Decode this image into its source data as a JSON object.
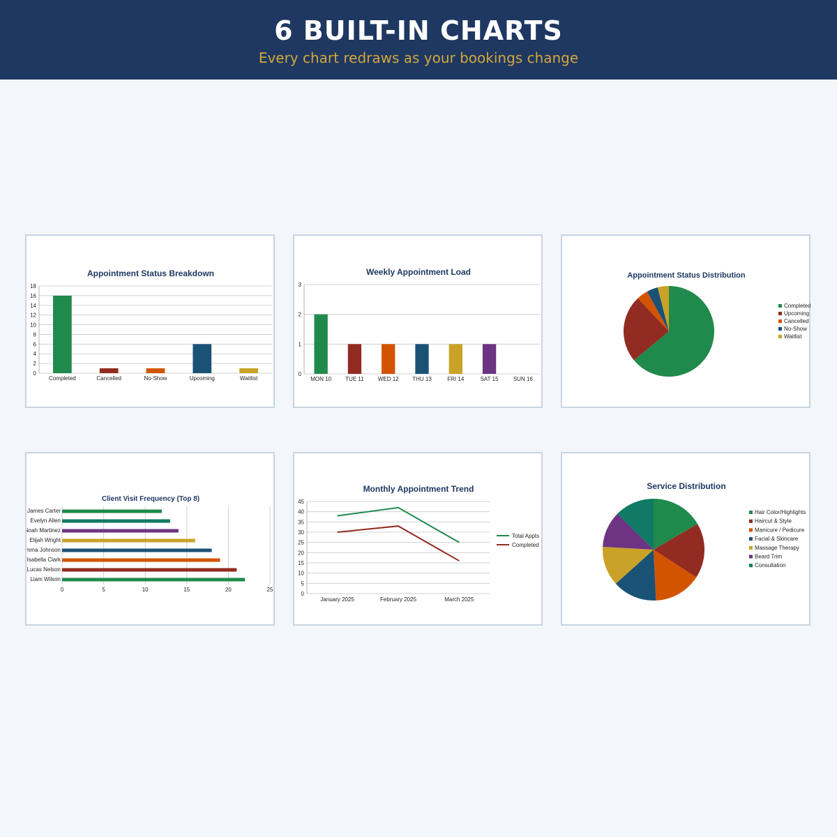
{
  "header": {
    "title": "6 BUILT-IN CHARTS",
    "subtitle": "Every chart redraws as your bookings change"
  },
  "chart_data": [
    {
      "id": "status-breakdown",
      "type": "bar",
      "title": "Appointment Status Breakdown",
      "categories": [
        "Completed",
        "Cancelled",
        "No-Show",
        "Upcoming",
        "Waitlist"
      ],
      "values": [
        16,
        1,
        1,
        6,
        1
      ],
      "colors": [
        "#1f8a4c",
        "#922b21",
        "#d35400",
        "#1a5276",
        "#c9a227"
      ],
      "ylim": [
        0,
        18
      ],
      "yticks": [
        "0",
        "2",
        "4",
        "6",
        "8",
        "10",
        "12",
        "14",
        "16",
        "18"
      ],
      "grid": true
    },
    {
      "id": "weekly-load",
      "type": "bar",
      "title": "Weekly Appointment Load",
      "categories": [
        "MON 10",
        "TUE 11",
        "WED 12",
        "THU 13",
        "FRI 14",
        "SAT 15",
        "SUN 16"
      ],
      "values": [
        2,
        1,
        1,
        1,
        1,
        1,
        0
      ],
      "colors": [
        "#1f8a4c",
        "#922b21",
        "#d35400",
        "#1a5276",
        "#c9a227",
        "#6c3483",
        "#117a65"
      ],
      "ylim": [
        0,
        3
      ],
      "yticks": [
        "0",
        "1",
        "2",
        "3"
      ],
      "grid": true
    },
    {
      "id": "status-distribution",
      "type": "pie",
      "title": "Appointment Status Distribution",
      "labels": [
        "Completed",
        "Upcoming",
        "Cancelled",
        "No-Show",
        "Waitlist"
      ],
      "values": [
        16,
        6,
        1,
        1,
        1
      ],
      "colors": [
        "#1f8a4c",
        "#922b21",
        "#d35400",
        "#1a5276",
        "#c9a227"
      ],
      "legend": "right"
    },
    {
      "id": "visit-frequency",
      "type": "bar",
      "orientation": "horizontal",
      "title": "Client Visit Frequency (Top 8)",
      "categories": [
        "James Carter",
        "Evelyn Allen",
        "Noah Martinez",
        "Elijah Wright",
        "Emma Johnson",
        "Isabella Clark",
        "Lucas Nelson",
        "Liam Wilson"
      ],
      "values": [
        12,
        13,
        14,
        16,
        18,
        19,
        21,
        22
      ],
      "colors": [
        "#1f8a4c",
        "#117a65",
        "#6c3483",
        "#c9a227",
        "#1a5276",
        "#d35400",
        "#922b21",
        "#1f8a4c"
      ],
      "xlim": [
        0,
        25
      ],
      "xticks": [
        "0",
        "5",
        "10",
        "15",
        "20",
        "25"
      ],
      "grid": true
    },
    {
      "id": "monthly-trend",
      "type": "line",
      "title": "Monthly Appointment Trend",
      "x": [
        "January 2025",
        "February 2025",
        "March 2025"
      ],
      "series": [
        {
          "name": "Total Appts",
          "values": [
            38,
            42,
            25
          ],
          "color": "#1f8a4c"
        },
        {
          "name": "Completed",
          "values": [
            30,
            33,
            16
          ],
          "color": "#922b21"
        }
      ],
      "ylim": [
        0,
        45
      ],
      "yticks": [
        "0",
        "5",
        "10",
        "15",
        "20",
        "25",
        "30",
        "35",
        "40",
        "45"
      ],
      "legend": "right",
      "grid": true
    },
    {
      "id": "service-distribution",
      "type": "pie",
      "title": "Service Distribution",
      "labels": [
        "Hair Color/Highlights",
        "Haircut & Style",
        "Manicure / Pedicure",
        "Facial & Skincare",
        "Massage Therapy",
        "Beard Trim",
        "Consultation"
      ],
      "values": [
        16.5,
        17.5,
        15,
        14,
        12.5,
        11.5,
        12.5
      ],
      "colors": [
        "#1f8a4c",
        "#922b21",
        "#d35400",
        "#1a5276",
        "#c9a227",
        "#6c3483",
        "#117a65"
      ],
      "legend": "right"
    }
  ]
}
